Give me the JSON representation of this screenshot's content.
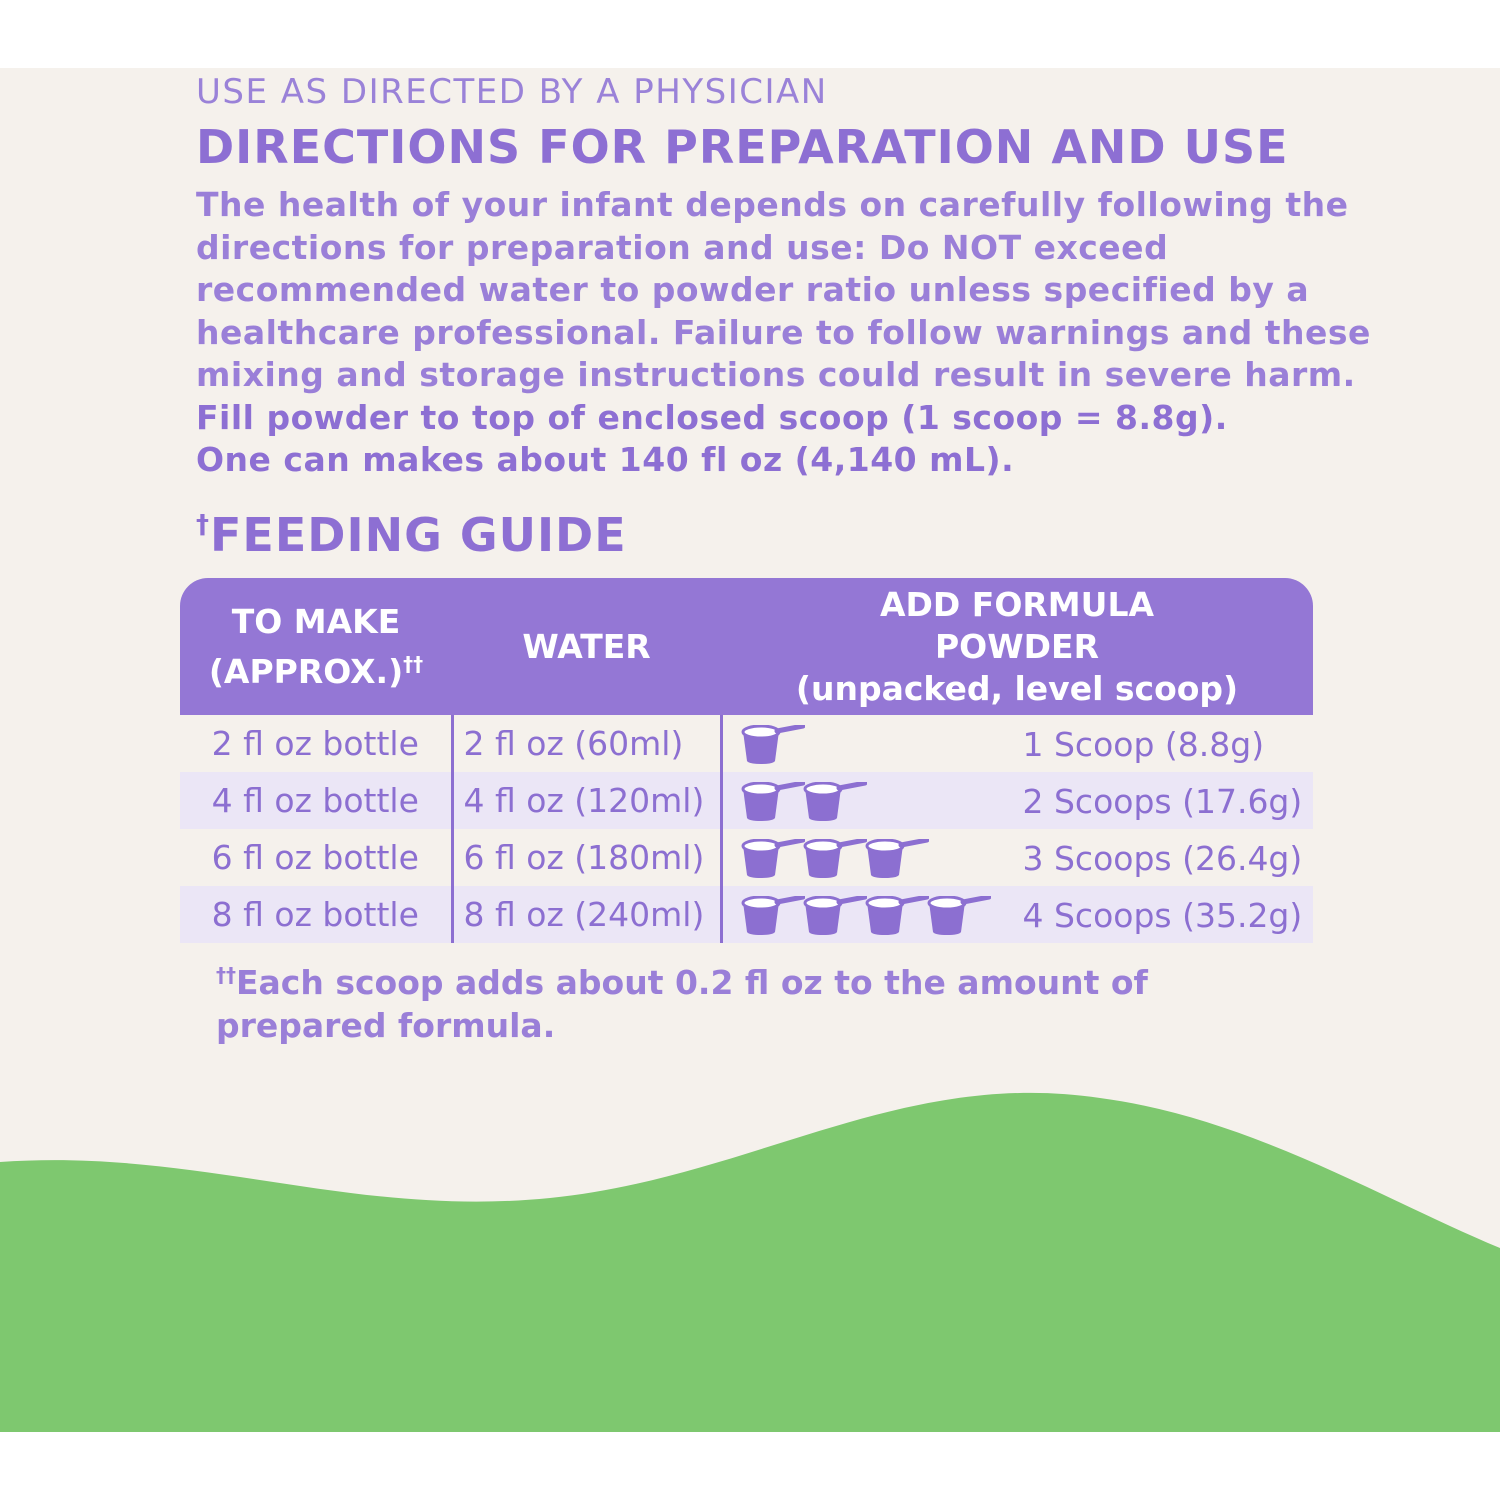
{
  "top_line": "USE AS DIRECTED BY A PHYSICIAN",
  "heading": "DIRECTIONS FOR PREPARATION AND USE",
  "body_lines": [
    "The health of your infant depends on carefully following the",
    "directions for preparation and use: Do NOT exceed",
    "recommended water to powder ratio unless specified by a",
    "healthcare professional. Failure to follow warnings and these",
    "mixing and storage instructions could result in severe harm."
  ],
  "bold_lines": [
    "Fill powder to top of enclosed scoop (1 scoop = 8.8g).",
    "One can makes about 140 fl oz (4,140 mL)."
  ],
  "feeding_guide": {
    "dagger": "†",
    "title": "FEEDING GUIDE",
    "headers": {
      "to_make_1": "TO MAKE",
      "to_make_2": "(APPROX.)",
      "to_make_mark": "††",
      "water": "WATER",
      "formula_1": "ADD FORMULA",
      "formula_2": "POWDER",
      "formula_3": "(unpacked, level scoop)"
    },
    "rows": [
      {
        "to_make": "2 fl oz bottle",
        "water": "2 fl oz (60ml)",
        "scoops": 1,
        "amount": "1 Scoop (8.8g)"
      },
      {
        "to_make": "4 fl oz bottle",
        "water": "4 fl oz (120ml)",
        "scoops": 2,
        "amount": "2 Scoops (17.6g)"
      },
      {
        "to_make": "6 fl oz bottle",
        "water": "6 fl oz (180ml)",
        "scoops": 3,
        "amount": "3 Scoops (26.4g)"
      },
      {
        "to_make": "8 fl oz bottle",
        "water": "8 fl oz (240ml)",
        "scoops": 4,
        "amount": "4 Scoops (35.2g)"
      }
    ],
    "footnote_mark": "††",
    "footnote_1": "Each scoop adds about 0.2 fl oz to the amount of",
    "footnote_2": "prepared formula."
  },
  "colors": {
    "purple": "#9477d5",
    "text": "#8c6fd1",
    "background": "#f5f1ec",
    "stripe": "#ebe6f6",
    "green": "#7ec86f"
  }
}
